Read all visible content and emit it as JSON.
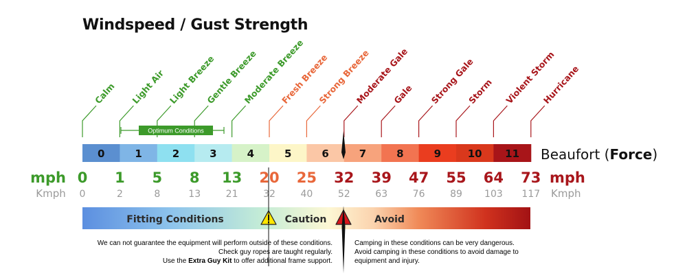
{
  "title": "Windspeed / Gust Strength",
  "beaufort_label": "Beaufort",
  "force_label": "Force",
  "optimum_label": "Optimum Conditions",
  "mph_label": "mph",
  "kmph_label": "Kmph",
  "levels": [
    {
      "force": "0",
      "name": "Calm",
      "mph": "0",
      "kmph": "0",
      "bar_color": "#5b8fd0",
      "name_color": "#3c9a2a",
      "mph_color": "#3c9a2a"
    },
    {
      "force": "1",
      "name": "Light Air",
      "mph": "1",
      "kmph": "2",
      "bar_color": "#7fb5e6",
      "name_color": "#3c9a2a",
      "mph_color": "#3c9a2a"
    },
    {
      "force": "2",
      "name": "Light Breeze",
      "mph": "5",
      "kmph": "8",
      "bar_color": "#8ee0f0",
      "name_color": "#3c9a2a",
      "mph_color": "#3c9a2a"
    },
    {
      "force": "3",
      "name": "Gentle Breeze",
      "mph": "8",
      "kmph": "13",
      "bar_color": "#b6ebf0",
      "name_color": "#3c9a2a",
      "mph_color": "#3c9a2a"
    },
    {
      "force": "4",
      "name": "Moderate Breeze",
      "mph": "13",
      "kmph": "21",
      "bar_color": "#d6f2c8",
      "name_color": "#3c9a2a",
      "mph_color": "#3c9a2a"
    },
    {
      "force": "5",
      "name": "Fresh Breeze",
      "mph": "20",
      "kmph": "32",
      "bar_color": "#fdf6c8",
      "name_color": "#e8673a",
      "mph_color": "#e8673a"
    },
    {
      "force": "6",
      "name": "Strong Breeze",
      "mph": "25",
      "kmph": "40",
      "bar_color": "#fbc7a6",
      "name_color": "#e8673a",
      "mph_color": "#e8673a"
    },
    {
      "force": "7",
      "name": "Moderate Gale",
      "mph": "32",
      "kmph": "52",
      "bar_color": "#f7a37c",
      "name_color": "#a8161b",
      "mph_color": "#a8161b"
    },
    {
      "force": "8",
      "name": "Gale",
      "mph": "39",
      "kmph": "63",
      "bar_color": "#f27451",
      "name_color": "#a8161b",
      "mph_color": "#a8161b"
    },
    {
      "force": "9",
      "name": "Strong Gale",
      "mph": "47",
      "kmph": "76",
      "bar_color": "#ea3d1f",
      "name_color": "#a8161b",
      "mph_color": "#a8161b"
    },
    {
      "force": "10",
      "name": "Storm",
      "mph": "55",
      "kmph": "89",
      "bar_color": "#d9381c",
      "name_color": "#a8161b",
      "mph_color": "#a8161b"
    },
    {
      "force": "11",
      "name": "Violent Storm",
      "mph": "64",
      "kmph": "103",
      "bar_color": "#a81519",
      "name_color": "#a8161b",
      "mph_color": "#a8161b"
    },
    {
      "name": "Hurricane",
      "mph": "73",
      "kmph": "117",
      "name_color": "#a8161b",
      "mph_color": "#a8161b"
    }
  ],
  "zones": {
    "fitting": "Fitting Conditions",
    "caution": "Caution",
    "avoid": "Avoid"
  },
  "notes": {
    "left_line1": "We can not guarantee the equipment will perform outside of these conditions.",
    "left_line2": "Check guy ropes are taught regularly.",
    "left_line3_prefix": "Use the ",
    "left_line3_bold": "Extra Guy Kit",
    "left_line3_suffix": " to offer additional frame support.",
    "right_line1": "Camping in these conditions can be very dangerous.",
    "right_line2": "Avoid camping in these conditions to avoid damage to",
    "right_line3": "equipment and injury."
  },
  "colors": {
    "green": "#3c9a2a",
    "optimum_box": "#3c9a2a",
    "orange": "#e8673a",
    "red": "#a8161b",
    "grey": "#9a9a9a",
    "warning_yellow": "#ffe600",
    "warning_red": "#d8141b"
  }
}
